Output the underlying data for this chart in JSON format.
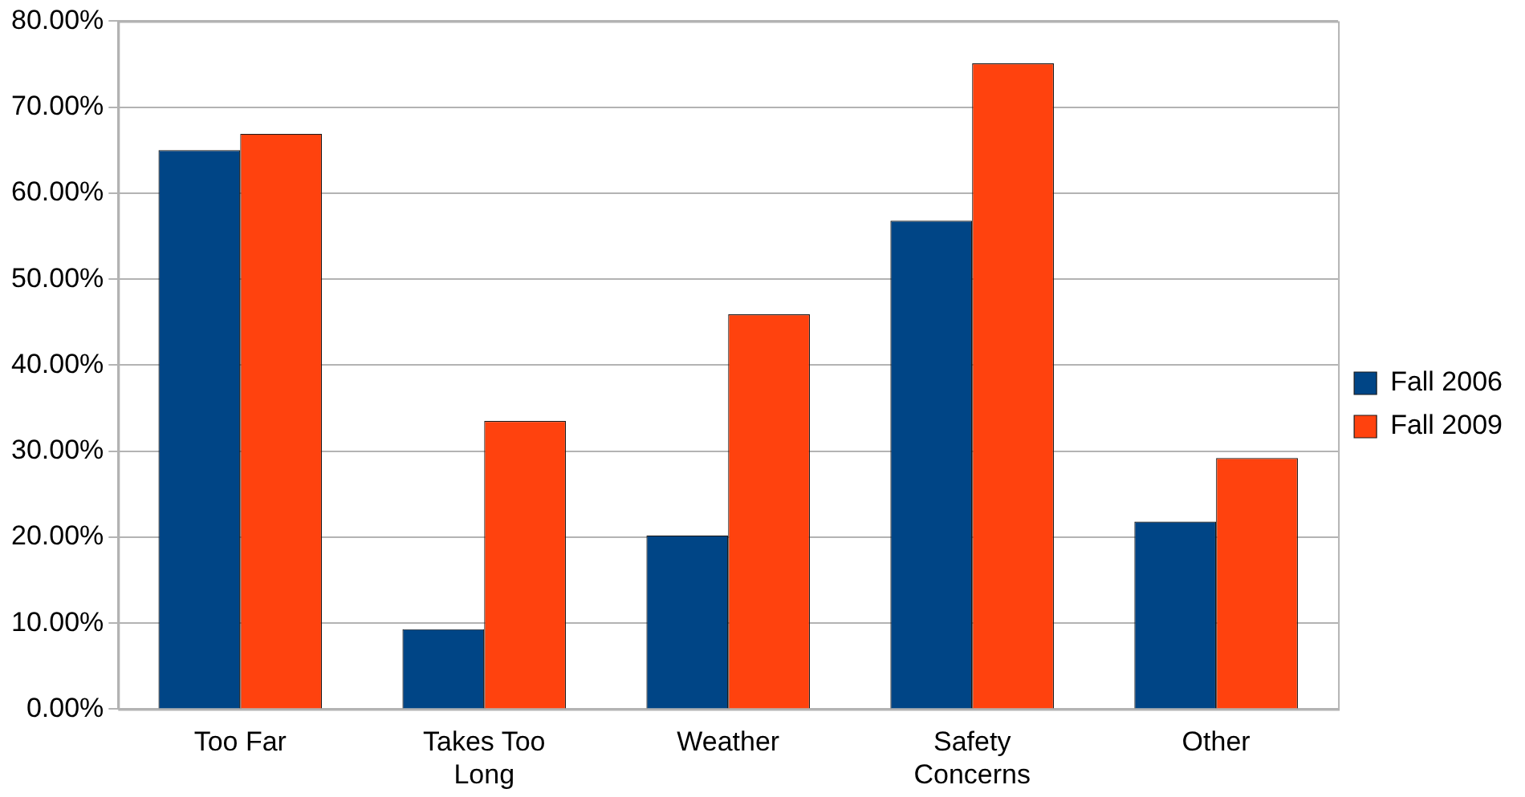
{
  "chart_data": {
    "type": "bar",
    "categories": [
      "Too Far",
      "Takes Too Long",
      "Weather",
      "Safety Concerns",
      "Other"
    ],
    "series": [
      {
        "name": "Fall 2006",
        "color": "#004586",
        "values": [
          65.0,
          9.3,
          20.2,
          56.8,
          21.8
        ]
      },
      {
        "name": "Fall 2009",
        "color": "#ff420e",
        "values": [
          66.9,
          33.5,
          45.9,
          75.1,
          29.2
        ]
      }
    ],
    "ylim": [
      0,
      80
    ],
    "yticks": [
      {
        "value": 0,
        "label": "0.00%"
      },
      {
        "value": 10,
        "label": "10.00%"
      },
      {
        "value": 20,
        "label": "20.00%"
      },
      {
        "value": 30,
        "label": "30.00%"
      },
      {
        "value": 40,
        "label": "40.00%"
      },
      {
        "value": 50,
        "label": "50.00%"
      },
      {
        "value": 60,
        "label": "60.00%"
      },
      {
        "value": 70,
        "label": "70.00%"
      },
      {
        "value": 80,
        "label": "80.00%"
      }
    ],
    "grid": "y",
    "legend": "right"
  }
}
